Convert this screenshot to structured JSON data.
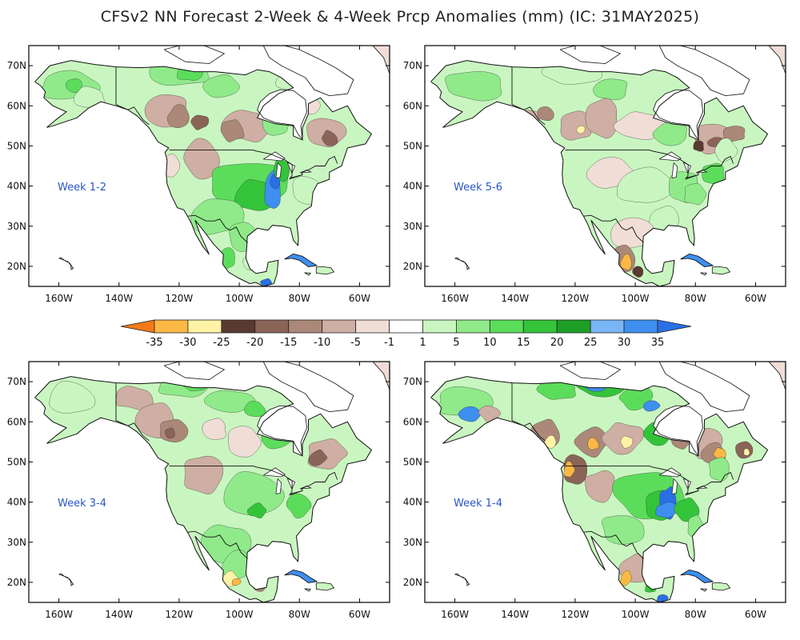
{
  "title": "CFSv2 NN Forecast 2-Week & 4-Week Prcp Anomalies (mm) (IC: 31MAY2025)",
  "colorbar": {
    "labels": [
      "-35",
      "-30",
      "-25",
      "-20",
      "-15",
      "-10",
      "-5",
      "-1",
      "1",
      "5",
      "10",
      "15",
      "20",
      "25",
      "30",
      "35"
    ],
    "colors": [
      "#f37a17",
      "#fbb844",
      "#fff3a6",
      "#5a3a30",
      "#8b6458",
      "#ab8878",
      "#cfaea3",
      "#efddd6",
      "#ffffff",
      "#c9f6c0",
      "#90ea8a",
      "#5bdd5b",
      "#34c43a",
      "#1d9e25",
      "#79b6f6",
      "#3e8ff0",
      "#2a6fe6"
    ]
  },
  "axes": {
    "lat_labels": [
      "70N",
      "60N",
      "50N",
      "40N",
      "30N",
      "20N"
    ],
    "lon_labels": [
      "160W",
      "140W",
      "120W",
      "100W",
      "80W",
      "60W"
    ]
  },
  "panels": [
    {
      "id": "week12",
      "label": "Week 1-2"
    },
    {
      "id": "week56",
      "label": "Week 5-6"
    },
    {
      "id": "week34",
      "label": "Week 3-4"
    },
    {
      "id": "week14",
      "label": "Week 1-4"
    }
  ]
}
